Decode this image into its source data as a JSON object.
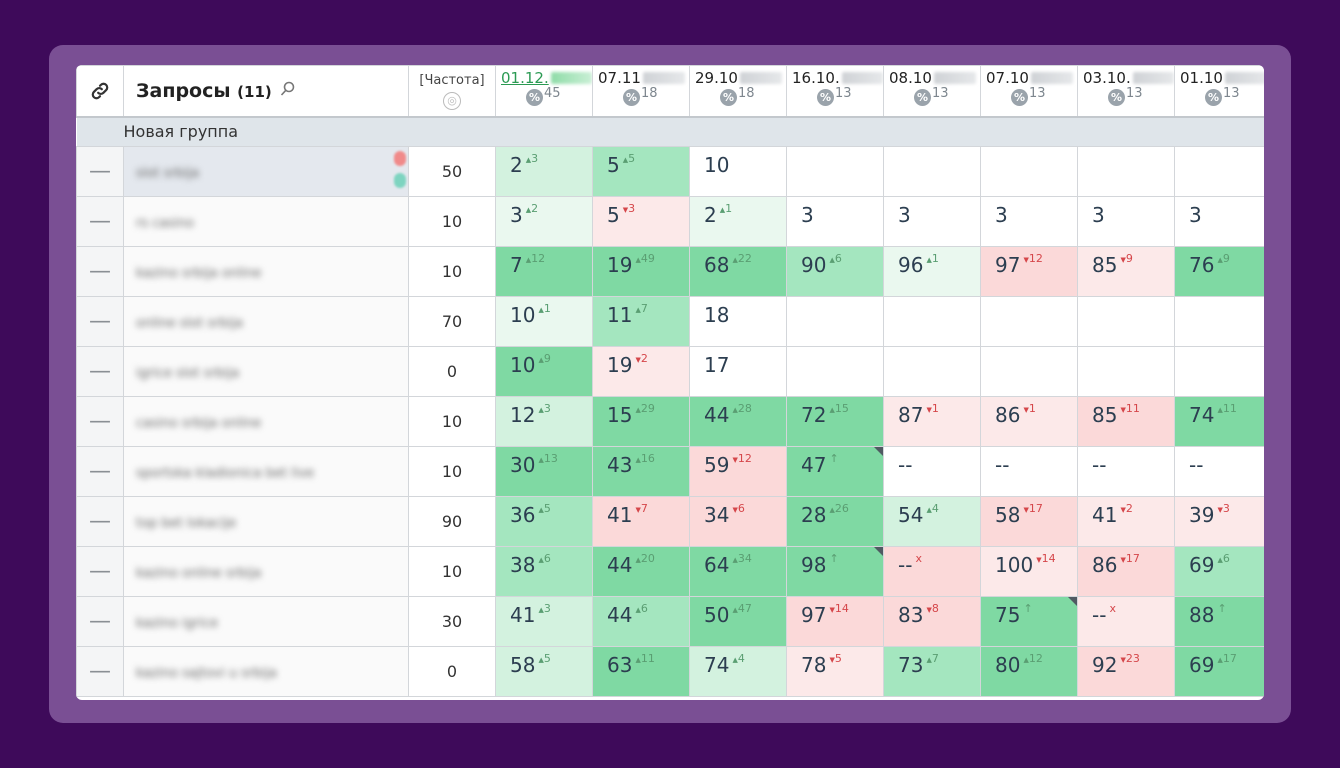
{
  "header": {
    "link_icon": "link-icon",
    "queries_title": "Запросы",
    "queries_count": "(11)",
    "search_icon": "search-icon",
    "freq_label": "[Частота]",
    "globe_icon": "globe-icon",
    "dates": [
      {
        "date": "01.12.",
        "pct": "45"
      },
      {
        "date": "07.11",
        "pct": "18"
      },
      {
        "date": "29.10",
        "pct": "18"
      },
      {
        "date": "16.10.",
        "pct": "13"
      },
      {
        "date": "08.10",
        "pct": "13"
      },
      {
        "date": "07.10",
        "pct": "13"
      },
      {
        "date": "03.10.",
        "pct": "13"
      },
      {
        "date": "01.10",
        "pct": "13"
      }
    ]
  },
  "group": {
    "name": "Новая группа"
  },
  "rows": [
    {
      "q": "slot srbija",
      "freq": "50",
      "cells": [
        [
          "2",
          "+3",
          "up",
          "g1"
        ],
        [
          "5",
          "+5",
          "up",
          "g2"
        ],
        [
          "10",
          "",
          "",
          "w"
        ],
        [
          "",
          "",
          "",
          "w"
        ],
        [
          "",
          "",
          "",
          "w"
        ],
        [
          "",
          "",
          "",
          "w"
        ],
        [
          "",
          "",
          "",
          "w"
        ],
        [
          "",
          "",
          "",
          "w"
        ]
      ]
    },
    {
      "q": "rs casino",
      "freq": "10",
      "cells": [
        [
          "3",
          "+2",
          "up",
          "g0"
        ],
        [
          "5",
          "-3",
          "down",
          "r1"
        ],
        [
          "2",
          "+1",
          "up",
          "g0"
        ],
        [
          "3",
          "",
          "",
          "w"
        ],
        [
          "3",
          "",
          "",
          "w"
        ],
        [
          "3",
          "",
          "",
          "w"
        ],
        [
          "3",
          "",
          "",
          "w"
        ],
        [
          "3",
          "",
          "",
          "w"
        ]
      ]
    },
    {
      "q": "kazino srbija online",
      "freq": "10",
      "cells": [
        [
          "7",
          "+12",
          "up",
          "g3"
        ],
        [
          "19",
          "+49",
          "up",
          "g3"
        ],
        [
          "68",
          "+22",
          "up",
          "g3"
        ],
        [
          "90",
          "+6",
          "up",
          "g2"
        ],
        [
          "96",
          "+1",
          "up",
          "g0"
        ],
        [
          "97",
          "-12",
          "down",
          "r2"
        ],
        [
          "85",
          "-9",
          "down",
          "r1"
        ],
        [
          "76",
          "+9",
          "up",
          "g3"
        ]
      ]
    },
    {
      "q": "online slot srbija",
      "freq": "70",
      "cells": [
        [
          "10",
          "+1",
          "up",
          "g0"
        ],
        [
          "11",
          "+7",
          "up",
          "g2"
        ],
        [
          "18",
          "",
          "",
          "w"
        ],
        [
          "",
          "",
          "",
          "w"
        ],
        [
          "",
          "",
          "",
          "w"
        ],
        [
          "",
          "",
          "",
          "w"
        ],
        [
          "",
          "",
          "",
          "w"
        ],
        [
          "",
          "",
          "",
          "w"
        ]
      ]
    },
    {
      "q": "igrice slot srbija",
      "freq": "0",
      "cells": [
        [
          "10",
          "+9",
          "up",
          "g3"
        ],
        [
          "19",
          "-2",
          "down",
          "r1"
        ],
        [
          "17",
          "",
          "",
          "w"
        ],
        [
          "",
          "",
          "",
          "w"
        ],
        [
          "",
          "",
          "",
          "w"
        ],
        [
          "",
          "",
          "",
          "w"
        ],
        [
          "",
          "",
          "",
          "w"
        ],
        [
          "",
          "",
          "",
          "w"
        ]
      ]
    },
    {
      "q": "casino srbija online",
      "freq": "10",
      "cells": [
        [
          "12",
          "+3",
          "up",
          "g1"
        ],
        [
          "15",
          "+29",
          "up",
          "g3"
        ],
        [
          "44",
          "+28",
          "up",
          "g3"
        ],
        [
          "72",
          "+15",
          "up",
          "g3"
        ],
        [
          "87",
          "-1",
          "down",
          "r1"
        ],
        [
          "86",
          "-1",
          "down",
          "r1"
        ],
        [
          "85",
          "-11",
          "down",
          "r2"
        ],
        [
          "74",
          "+11",
          "up",
          "g3"
        ]
      ]
    },
    {
      "q": "sportska kladionica bet live",
      "freq": "10",
      "cells": [
        [
          "30",
          "+13",
          "up",
          "g3"
        ],
        [
          "43",
          "+16",
          "up",
          "g3"
        ],
        [
          "59",
          "-12",
          "down",
          "r2"
        ],
        [
          "47",
          "↑",
          "up",
          "g3c"
        ],
        [
          "--",
          "",
          "",
          "w"
        ],
        [
          "--",
          "",
          "",
          "w"
        ],
        [
          "--",
          "",
          "",
          "w"
        ],
        [
          "--",
          "",
          "",
          "w"
        ]
      ]
    },
    {
      "q": "top bet lokacije",
      "freq": "90",
      "cells": [
        [
          "36",
          "+5",
          "up",
          "g2"
        ],
        [
          "41",
          "-7",
          "down",
          "r2"
        ],
        [
          "34",
          "-6",
          "down",
          "r2"
        ],
        [
          "28",
          "+26",
          "up",
          "g3"
        ],
        [
          "54",
          "+4",
          "up",
          "g1"
        ],
        [
          "58",
          "-17",
          "down",
          "r2"
        ],
        [
          "41",
          "-2",
          "down",
          "r1"
        ],
        [
          "39",
          "-3",
          "down",
          "r1"
        ]
      ]
    },
    {
      "q": "kazino online srbija",
      "freq": "10",
      "cells": [
        [
          "38",
          "+6",
          "up",
          "g2"
        ],
        [
          "44",
          "+20",
          "up",
          "g3"
        ],
        [
          "64",
          "+34",
          "up",
          "g3"
        ],
        [
          "98",
          "↑",
          "up",
          "g3c"
        ],
        [
          "--",
          "x",
          "x",
          "r2"
        ],
        [
          "100",
          "-14",
          "down",
          "r1"
        ],
        [
          "86",
          "-17",
          "down",
          "r2"
        ],
        [
          "69",
          "+6",
          "up",
          "g2"
        ]
      ]
    },
    {
      "q": "kazino igrice",
      "freq": "30",
      "cells": [
        [
          "41",
          "+3",
          "up",
          "g1"
        ],
        [
          "44",
          "+6",
          "up",
          "g2"
        ],
        [
          "50",
          "+47",
          "up",
          "g3"
        ],
        [
          "97",
          "-14",
          "down",
          "r2"
        ],
        [
          "83",
          "-8",
          "down",
          "r2"
        ],
        [
          "75",
          "↑",
          "up",
          "g3c"
        ],
        [
          "--",
          "x",
          "x",
          "r1"
        ],
        [
          "88",
          "↑",
          "up",
          "g3"
        ]
      ]
    },
    {
      "q": "kazino sajtovi u srbija",
      "freq": "0",
      "cells": [
        [
          "58",
          "+5",
          "up",
          "g1"
        ],
        [
          "63",
          "+11",
          "up",
          "g3"
        ],
        [
          "74",
          "+4",
          "up",
          "g1"
        ],
        [
          "78",
          "-5",
          "down",
          "r1"
        ],
        [
          "73",
          "+7",
          "up",
          "g2"
        ],
        [
          "80",
          "+12",
          "up",
          "g3"
        ],
        [
          "92",
          "-23",
          "down",
          "r2"
        ],
        [
          "69",
          "+17",
          "up",
          "g3"
        ]
      ]
    }
  ]
}
